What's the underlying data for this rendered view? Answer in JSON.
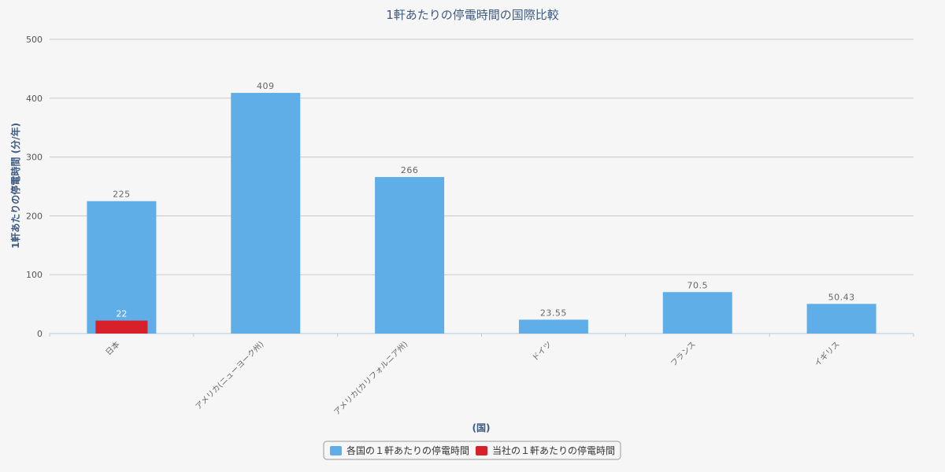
{
  "chart_data": {
    "type": "bar",
    "title": "1軒あたりの停電時間の国際比較",
    "xlabel": "(国)",
    "ylabel": "1軒あたりの停電時間 (分/年)",
    "categories": [
      "日本",
      "アメリカ(ニューヨーク州)",
      "アメリカ(カリフォルニア州)",
      "ドイツ",
      "フランス",
      "イギリス"
    ],
    "ylim": [
      0,
      500
    ],
    "yticks": [
      0,
      100,
      200,
      300,
      400,
      500
    ],
    "grid": true,
    "legend_position": "bottom-center",
    "series": [
      {
        "name": "各国の１軒あたりの停電時間",
        "color": "#5faee8",
        "values": [
          225,
          409,
          266,
          23.55,
          70.5,
          50.43
        ],
        "labels": [
          "225",
          "409",
          "266",
          "23.55",
          "70.5",
          "50.43"
        ]
      },
      {
        "name": "当社の１軒あたりの停電時間",
        "color": "#d7202a",
        "values": [
          22,
          null,
          null,
          null,
          null,
          null
        ],
        "labels": [
          "22",
          "",
          "",
          "",
          "",
          ""
        ]
      }
    ]
  }
}
